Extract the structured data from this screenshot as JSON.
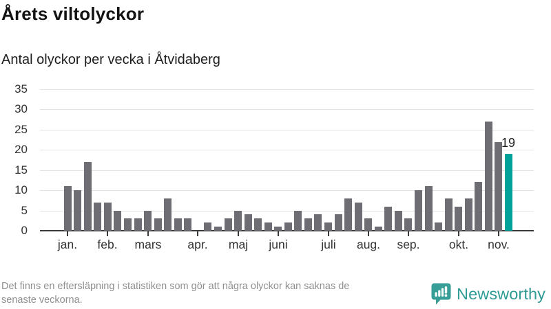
{
  "title": "Årets viltolyckor",
  "subtitle": "Antal olyckor per vecka i Åtvidaberg",
  "footer": {
    "line1": "Det finns en eftersläpning i statistiken som gör att några olyckor kan saknas de",
    "line2": "senaste veckorna."
  },
  "brand": {
    "name": "Newsworthy"
  },
  "chart_data": {
    "type": "bar",
    "title": "Årets viltolyckor",
    "subtitle": "Antal olyckor per vecka i Åtvidaberg",
    "xlabel": "",
    "ylabel": "",
    "x_unit": "vecka",
    "values": [
      11,
      10,
      17,
      7,
      7,
      5,
      3,
      3,
      5,
      3,
      8,
      3,
      3,
      0,
      2,
      1,
      3,
      5,
      4,
      3,
      2,
      1,
      2,
      5,
      3,
      4,
      2,
      4,
      8,
      7,
      3,
      1,
      6,
      5,
      3,
      10,
      11,
      2,
      8,
      6,
      8,
      12,
      27,
      22,
      19
    ],
    "month_ticks": [
      {
        "label": "jan.",
        "week_index": 0
      },
      {
        "label": "feb.",
        "week_index": 4
      },
      {
        "label": "mars",
        "week_index": 8
      },
      {
        "label": "apr.",
        "week_index": 13
      },
      {
        "label": "maj",
        "week_index": 17
      },
      {
        "label": "juni",
        "week_index": 21
      },
      {
        "label": "juli",
        "week_index": 26
      },
      {
        "label": "aug.",
        "week_index": 30
      },
      {
        "label": "sep.",
        "week_index": 34
      },
      {
        "label": "okt.",
        "week_index": 39
      },
      {
        "label": "nov.",
        "week_index": 43
      }
    ],
    "y_ticks": [
      0,
      5,
      10,
      15,
      20,
      25,
      30,
      35
    ],
    "ylim": [
      0,
      35
    ],
    "grid": "horizontal",
    "legend": "none",
    "highlight_last": true,
    "annotation": {
      "value_label": "19",
      "bar_index": 44
    },
    "colors": {
      "bar": "#6d6d73",
      "highlight": "#00a29a",
      "gridline": "#e3e3e3",
      "axis": "#3a3a3a",
      "tick_label": "#333333"
    }
  }
}
